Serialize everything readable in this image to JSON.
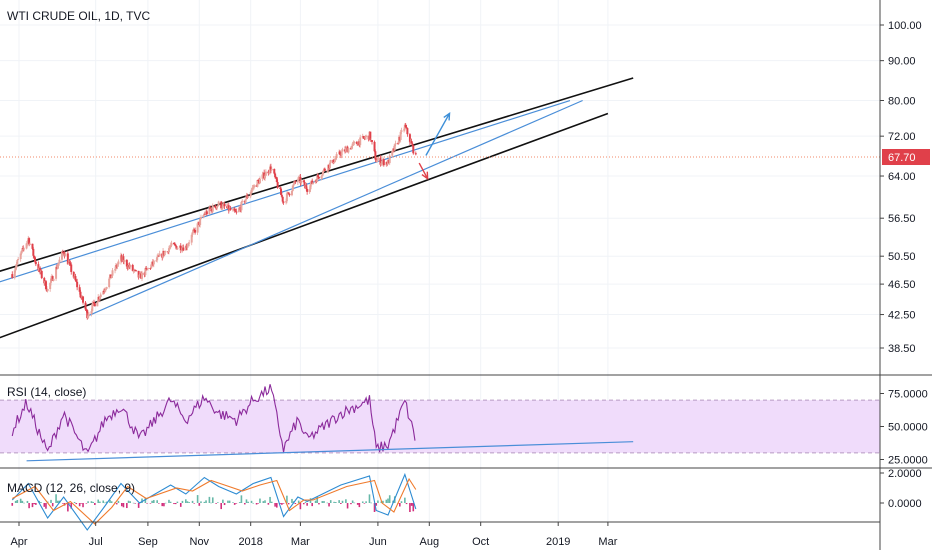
{
  "chart_title": "WTI CRUDE OIL, 1D, TVC",
  "colors": {
    "bg": "#ffffff",
    "grid": "#f0f3f7",
    "axis": "#444444",
    "candle_up": "#e8a49d",
    "candle_down": "#e0404a",
    "trend_black": "#111111",
    "trend_blue": "#4a8ed8",
    "price_line": "#f28a6a",
    "price_badge": "#e0404a",
    "rsi_line": "#8b2a9b",
    "rsi_band": "#f0dcfb",
    "macd_line": "#2d8bd2",
    "signal_line": "#ef7a2c",
    "hist_up": "#66b8a8",
    "hist_down": "#d2307c",
    "arrow_up": "#3d8fd8",
    "arrow_down": "#e0404a"
  },
  "chart_data": [
    {
      "type": "candlestick",
      "title": "WTI CRUDE OIL, 1D, TVC",
      "y_scale": "log",
      "ylim": [
        35.0,
        110.0
      ],
      "y_ticks": [
        "100.00",
        "90.00",
        "80.00",
        "72.00",
        "64.00",
        "56.50",
        "50.50",
        "46.50",
        "42.50",
        "38.50"
      ],
      "x_ticks": [
        "Apr",
        "Jul",
        "Sep",
        "Nov",
        "2018",
        "Mar",
        "Jun",
        "Aug",
        "Oct",
        "2019",
        "Mar"
      ],
      "last_price": "67.70",
      "close_path": [
        [
          "2017-03-24",
          47.9
        ],
        [
          "2017-04-12",
          53.2
        ],
        [
          "2017-04-21",
          49.5
        ],
        [
          "2017-05-05",
          45.7
        ],
        [
          "2017-05-24",
          51.3
        ],
        [
          "2017-06-21",
          42.5
        ],
        [
          "2017-07-12",
          46.0
        ],
        [
          "2017-07-31",
          50.2
        ],
        [
          "2017-08-22",
          47.4
        ],
        [
          "2017-09-28",
          52.0
        ],
        [
          "2017-10-16",
          51.9
        ],
        [
          "2017-11-07",
          57.2
        ],
        [
          "2017-11-24",
          58.9
        ],
        [
          "2017-12-15",
          57.3
        ],
        [
          "2018-01-04",
          61.9
        ],
        [
          "2018-01-25",
          65.6
        ],
        [
          "2018-02-09",
          59.3
        ],
        [
          "2018-02-26",
          63.5
        ],
        [
          "2018-03-09",
          61.7
        ],
        [
          "2018-04-18",
          68.5
        ],
        [
          "2018-05-22",
          72.2
        ],
        [
          "2018-05-30",
          67.0
        ],
        [
          "2018-06-13",
          66.6
        ],
        [
          "2018-07-03",
          74.1
        ],
        [
          "2018-07-16",
          67.7
        ]
      ],
      "annotations": [
        {
          "kind": "trendline",
          "color": "black",
          "from": [
            "2017-02-01",
            47.0
          ],
          "to": [
            "2019-03-31",
            85.5
          ]
        },
        {
          "kind": "trendline",
          "color": "black",
          "from": [
            "2017-02-01",
            38.4
          ],
          "to": [
            "2019-03-01",
            77.0
          ]
        },
        {
          "kind": "trendline",
          "color": "blue",
          "from": [
            "2017-02-01",
            45.5
          ],
          "to": [
            "2019-01-15",
            80.0
          ]
        },
        {
          "kind": "trendline",
          "color": "blue",
          "from": [
            "2017-06-21",
            42.3
          ],
          "to": [
            "2019-01-30",
            80.0
          ]
        },
        {
          "kind": "arrow",
          "direction": "up",
          "from": [
            "2018-07-28",
            68.0
          ],
          "to": [
            "2018-08-25",
            77.0
          ]
        },
        {
          "kind": "arrow",
          "direction": "down",
          "from": [
            "2018-07-20",
            66.5
          ],
          "to": [
            "2018-07-30",
            63.5
          ]
        }
      ]
    },
    {
      "type": "line",
      "title": "RSI (14, close)",
      "ylim": [
        20,
        84
      ],
      "y_ticks": [
        "75.0000",
        "50.0000",
        "25.0000"
      ],
      "band": [
        30,
        70
      ],
      "points": [
        [
          "2017-03-24",
          47
        ],
        [
          "2017-04-10",
          68
        ],
        [
          "2017-05-05",
          30
        ],
        [
          "2017-05-24",
          60
        ],
        [
          "2017-06-21",
          28
        ],
        [
          "2017-07-12",
          55
        ],
        [
          "2017-07-31",
          66
        ],
        [
          "2017-08-22",
          40
        ],
        [
          "2017-09-28",
          70
        ],
        [
          "2017-10-16",
          55
        ],
        [
          "2017-11-07",
          72
        ],
        [
          "2017-11-24",
          60
        ],
        [
          "2017-12-15",
          55
        ],
        [
          "2018-01-04",
          70
        ],
        [
          "2018-01-25",
          79
        ],
        [
          "2018-02-09",
          33
        ],
        [
          "2018-02-26",
          55
        ],
        [
          "2018-03-09",
          40
        ],
        [
          "2018-04-18",
          60
        ],
        [
          "2018-05-22",
          70
        ],
        [
          "2018-05-30",
          33
        ],
        [
          "2018-06-13",
          36
        ],
        [
          "2018-07-03",
          69
        ],
        [
          "2018-07-16",
          39
        ]
      ],
      "trendline": {
        "from": [
          "2017-04-10",
          24.0
        ],
        "to": [
          "2019-03-31",
          38.5
        ]
      }
    },
    {
      "type": "line",
      "title": "MACD (12, 26, close, 9)",
      "ylim": [
        -2.5,
        3.0
      ],
      "y_ticks": [
        "2.0000",
        "0.0000"
      ],
      "series": [
        {
          "role": "macd",
          "points": [
            [
              "2017-03-24",
              0.2
            ],
            [
              "2017-04-12",
              1.3
            ],
            [
              "2017-05-05",
              -1.0
            ],
            [
              "2017-05-24",
              0.4
            ],
            [
              "2017-06-21",
              -1.8
            ],
            [
              "2017-07-12",
              -0.2
            ],
            [
              "2017-07-31",
              1.3
            ],
            [
              "2017-08-22",
              0.0
            ],
            [
              "2017-09-28",
              1.2
            ],
            [
              "2017-10-16",
              0.6
            ],
            [
              "2017-11-07",
              1.7
            ],
            [
              "2017-11-24",
              1.1
            ],
            [
              "2017-12-15",
              0.6
            ],
            [
              "2018-01-04",
              1.3
            ],
            [
              "2018-01-25",
              1.7
            ],
            [
              "2018-02-09",
              -0.9
            ],
            [
              "2018-02-26",
              0.4
            ],
            [
              "2018-03-09",
              0.1
            ],
            [
              "2018-04-18",
              1.2
            ],
            [
              "2018-05-22",
              1.8
            ],
            [
              "2018-05-30",
              -0.5
            ],
            [
              "2018-06-13",
              -0.8
            ],
            [
              "2018-07-03",
              1.9
            ],
            [
              "2018-07-16",
              -0.4
            ]
          ]
        },
        {
          "role": "signal",
          "points": [
            [
              "2017-03-24",
              0.3
            ],
            [
              "2017-04-20",
              1.1
            ],
            [
              "2017-05-12",
              -0.5
            ],
            [
              "2017-06-01",
              0.1
            ],
            [
              "2017-06-30",
              -1.4
            ],
            [
              "2017-07-20",
              -0.3
            ],
            [
              "2017-08-08",
              1.1
            ],
            [
              "2017-08-30",
              0.3
            ],
            [
              "2017-10-05",
              1.0
            ],
            [
              "2017-10-24",
              0.8
            ],
            [
              "2017-11-15",
              1.5
            ],
            [
              "2017-12-01",
              1.2
            ],
            [
              "2017-12-22",
              0.8
            ],
            [
              "2018-01-12",
              1.2
            ],
            [
              "2018-02-01",
              1.5
            ],
            [
              "2018-02-16",
              -0.5
            ],
            [
              "2018-03-05",
              0.2
            ],
            [
              "2018-03-16",
              0.2
            ],
            [
              "2018-04-25",
              1.1
            ],
            [
              "2018-05-28",
              1.5
            ],
            [
              "2018-06-06",
              0.0
            ],
            [
              "2018-06-20",
              -0.6
            ],
            [
              "2018-07-08",
              1.6
            ],
            [
              "2018-07-16",
              0.9
            ]
          ]
        }
      ]
    }
  ]
}
